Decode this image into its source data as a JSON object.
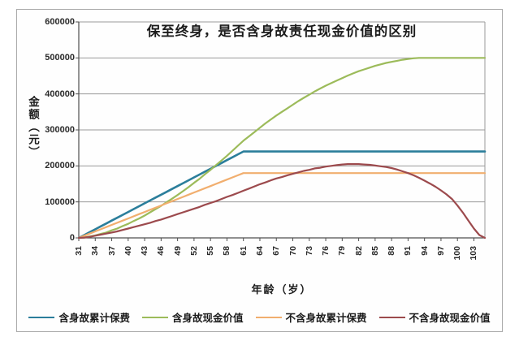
{
  "chart_data": {
    "type": "line",
    "title": "保至终身，是否含身故责任现金价值的区别",
    "xlabel": "年龄（岁）",
    "ylabel": "金额（元）",
    "x_age_start": 31,
    "x_age_end": 105,
    "x_tick_labels": [
      "31",
      "34",
      "37",
      "40",
      "43",
      "46",
      "49",
      "52",
      "55",
      "58",
      "61",
      "64",
      "67",
      "70",
      "73",
      "76",
      "79",
      "82",
      "85",
      "88",
      "91",
      "94",
      "97",
      "100",
      "103"
    ],
    "y_ticks": [
      0,
      100000,
      200000,
      300000,
      400000,
      500000,
      600000
    ],
    "ylim": [
      0,
      600000
    ],
    "grid": true,
    "legend_position": "bottom",
    "value_unit_multiplier": 1000,
    "series": [
      {
        "name": "含身故累计保费",
        "color": "#2b7e9b",
        "values_k": [
          0,
          8,
          16,
          24,
          32,
          40,
          48,
          56,
          64,
          72,
          80,
          88,
          96,
          104,
          112,
          120,
          128,
          136,
          144,
          152,
          160,
          168,
          176,
          184,
          192,
          200,
          208,
          216,
          224,
          232,
          240,
          240,
          240,
          240,
          240,
          240,
          240,
          240,
          240,
          240,
          240,
          240,
          240,
          240,
          240,
          240,
          240,
          240,
          240,
          240,
          240,
          240,
          240,
          240,
          240,
          240,
          240,
          240,
          240,
          240,
          240,
          240,
          240,
          240,
          240,
          240,
          240,
          240,
          240,
          240,
          240,
          240,
          240,
          240,
          240
        ]
      },
      {
        "name": "含身故现金价值",
        "color": "#9cbb5a",
        "values_k": [
          0,
          1,
          4,
          7,
          11,
          15,
          21,
          26,
          33,
          39,
          47,
          54,
          62,
          71,
          80,
          89,
          99,
          109,
          119,
          130,
          141,
          153,
          164,
          177,
          189,
          202,
          215,
          228,
          242,
          256,
          270,
          282,
          294,
          306,
          318,
          329,
          340,
          350,
          360,
          370,
          380,
          389,
          398,
          407,
          415,
          423,
          430,
          437,
          444,
          451,
          457,
          463,
          468,
          473,
          478,
          482,
          486,
          489,
          492,
          495,
          497,
          499,
          500,
          500,
          500,
          500,
          500,
          500,
          500,
          500,
          500,
          500,
          500,
          500,
          500
        ]
      },
      {
        "name": "不含身故累计保费",
        "color": "#f1ae6e",
        "values_k": [
          0,
          6,
          12,
          18,
          24,
          30,
          36,
          42,
          48,
          54,
          60,
          66,
          72,
          78,
          84,
          90,
          96,
          102,
          108,
          114,
          120,
          126,
          132,
          138,
          144,
          150,
          156,
          162,
          168,
          174,
          180,
          180,
          180,
          180,
          180,
          180,
          180,
          180,
          180,
          180,
          180,
          180,
          180,
          180,
          180,
          180,
          180,
          180,
          180,
          180,
          180,
          180,
          180,
          180,
          180,
          180,
          180,
          180,
          180,
          180,
          180,
          180,
          180,
          180,
          180,
          180,
          180,
          180,
          180,
          180,
          180,
          180,
          180,
          180,
          180
        ]
      },
      {
        "name": "不含身故现金价值",
        "color": "#9c4a4d",
        "values_k": [
          0,
          1,
          3,
          6,
          9,
          12,
          15,
          18,
          22,
          26,
          30,
          34,
          38,
          42,
          47,
          51,
          56,
          61,
          66,
          71,
          76,
          81,
          86,
          92,
          97,
          102,
          108,
          114,
          119,
          125,
          131,
          137,
          143,
          149,
          154,
          160,
          165,
          169,
          174,
          178,
          182,
          186,
          189,
          193,
          195,
          198,
          200,
          202,
          204,
          205,
          205,
          205,
          204,
          203,
          201,
          199,
          197,
          194,
          190,
          185,
          180,
          174,
          167,
          159,
          151,
          142,
          132,
          121,
          108,
          90,
          70,
          48,
          26,
          8,
          0
        ]
      }
    ],
    "colors": {
      "grid": "#999999",
      "axis": "#4f4f4f",
      "frame_border": "#a9a9a9"
    }
  }
}
